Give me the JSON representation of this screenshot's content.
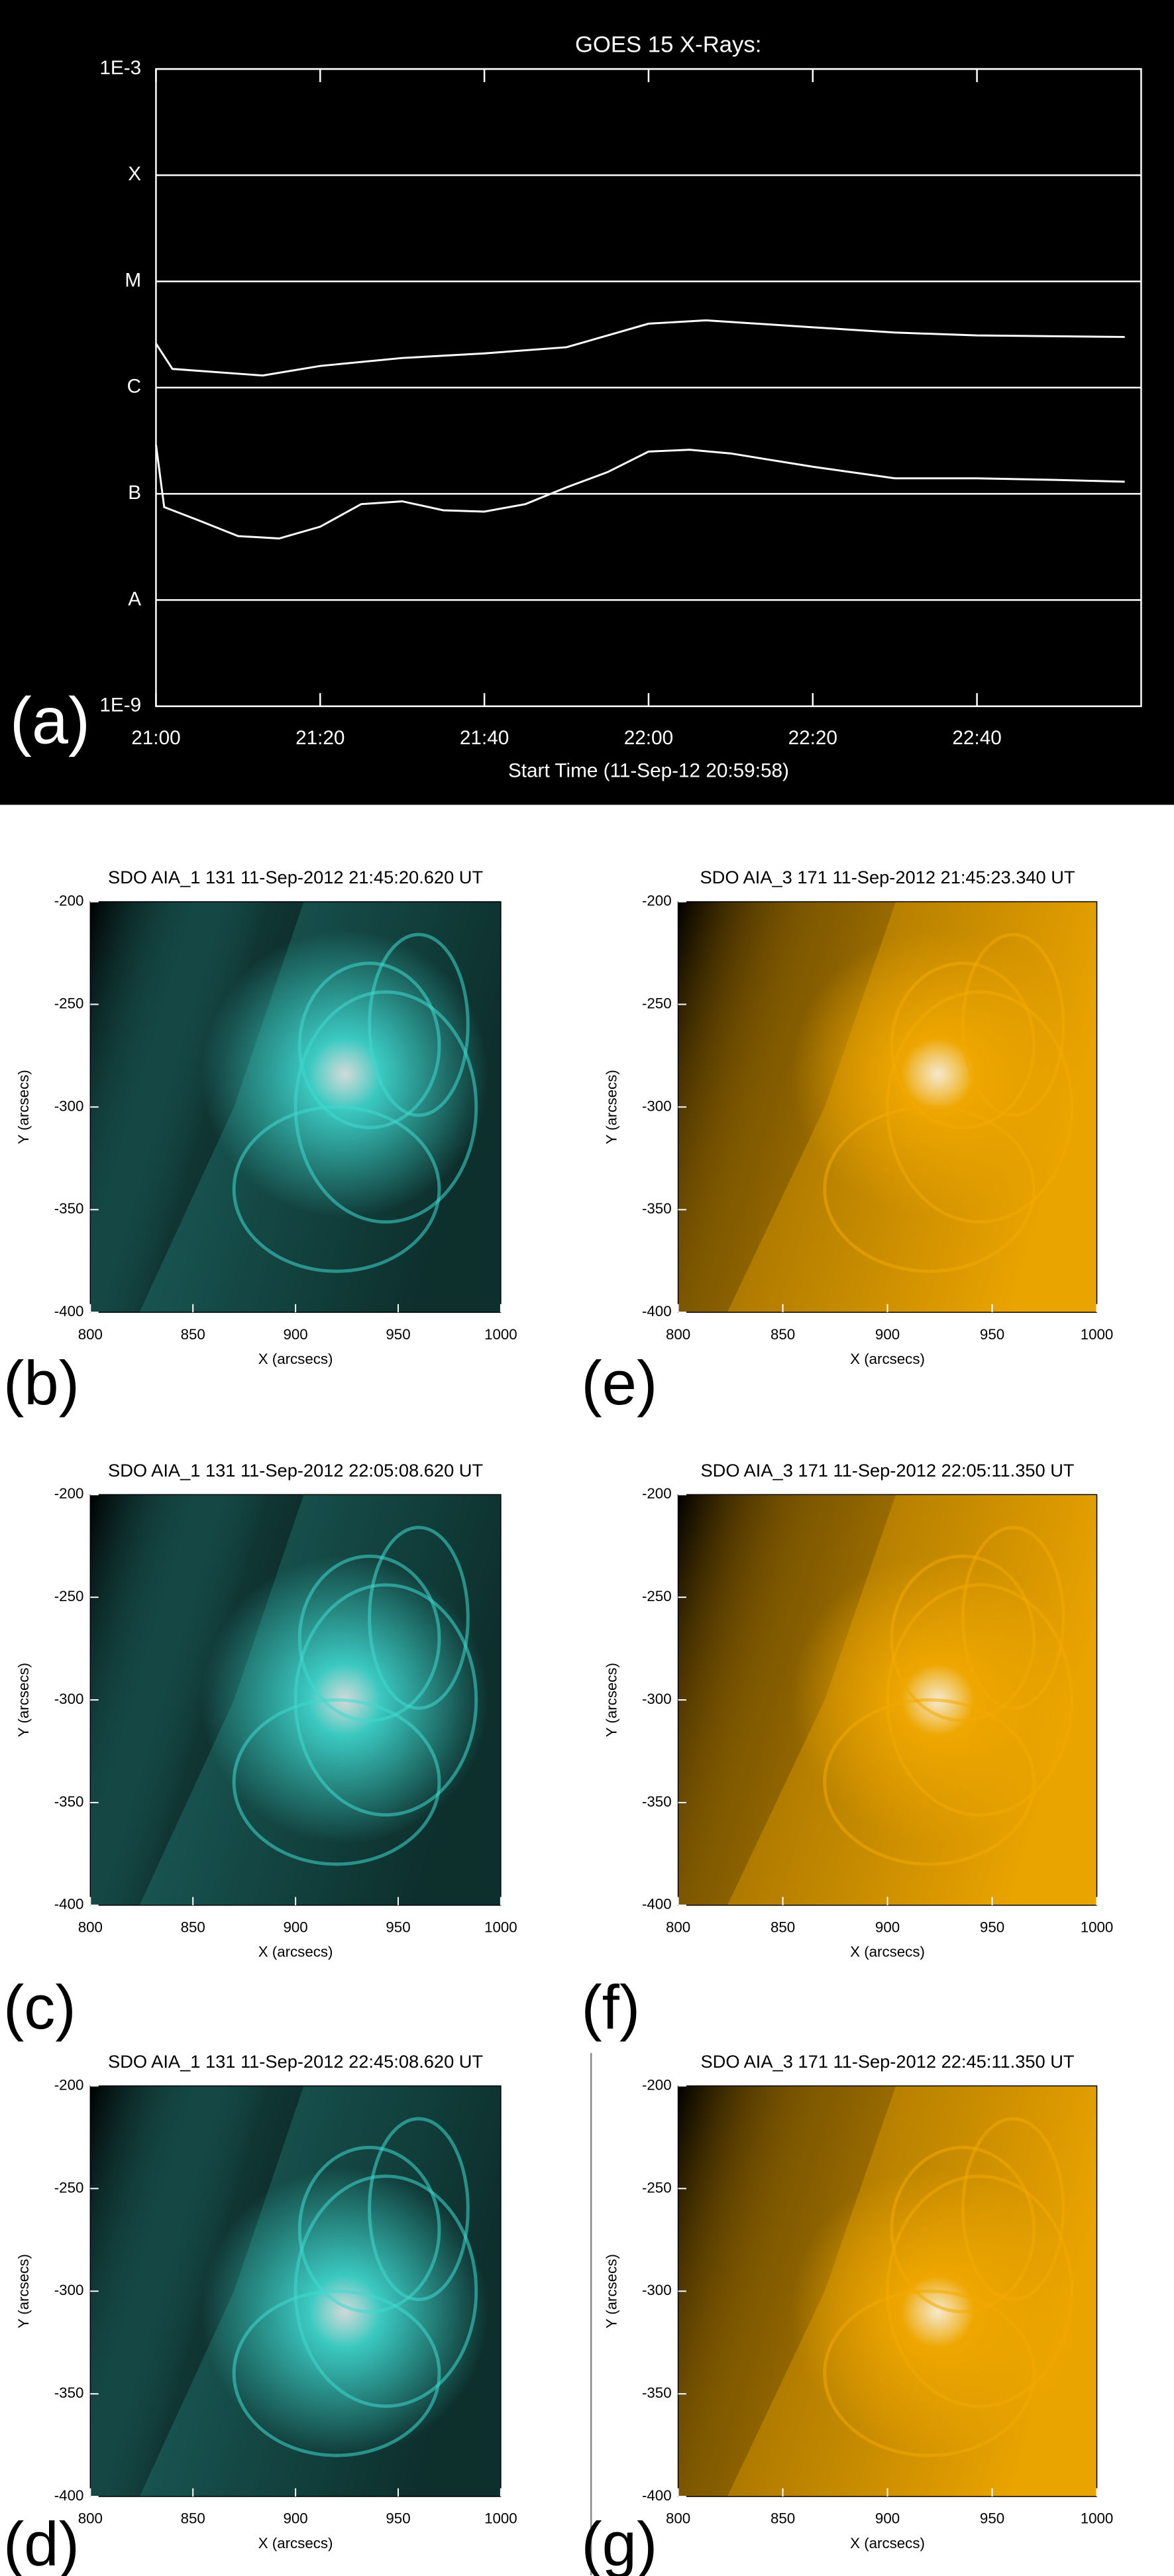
{
  "chart_data": [
    {
      "type": "line",
      "title": "GOES 15 X-Rays:",
      "label": "(a)",
      "xlabel": "Start Time (11-Sep-12 20:59:58)",
      "log_y": true,
      "grid": true,
      "color": "#ffffff",
      "xlim": [
        "21:00",
        "23:00"
      ],
      "xticks": [
        "21:00",
        "21:20",
        "21:40",
        "22:00",
        "22:20",
        "22:40"
      ],
      "ylim": [
        1e-09,
        0.001
      ],
      "yticks": [
        {
          "value": 1e-09,
          "label": "1E-9"
        },
        {
          "value": 1e-08,
          "label": "A"
        },
        {
          "value": 1e-07,
          "label": "B"
        },
        {
          "value": 1e-06,
          "label": "C"
        },
        {
          "value": 1e-05,
          "label": "M"
        },
        {
          "value": 0.0001,
          "label": "X"
        },
        {
          "value": 0.001,
          "label": "1E-3"
        }
      ],
      "series": [
        {
          "color": "#ffffff",
          "x": [
            "21:00",
            "21:02",
            "21:13",
            "21:20",
            "21:30",
            "21:40",
            "21:50",
            "21:55",
            "22:00",
            "22:07",
            "22:20",
            "22:30",
            "22:40",
            "22:58"
          ],
          "values": [
            2.6e-06,
            1.5e-06,
            1.3e-06,
            1.6e-06,
            1.9e-06,
            2.1e-06,
            2.4e-06,
            3.1e-06,
            4e-06,
            4.3e-06,
            3.7e-06,
            3.3e-06,
            3.1e-06,
            3e-06
          ]
        },
        {
          "color": "#ffffff",
          "x": [
            "21:00",
            "21:01",
            "21:05",
            "21:10",
            "21:15",
            "21:20",
            "21:25",
            "21:30",
            "21:35",
            "21:40",
            "21:45",
            "21:50",
            "21:55",
            "22:00",
            "22:05",
            "22:10",
            "22:20",
            "22:30",
            "22:40",
            "22:50",
            "22:58"
          ],
          "values": [
            2.9e-07,
            7.5e-08,
            5.7e-08,
            4e-08,
            3.8e-08,
            4.9e-08,
            8e-08,
            8.5e-08,
            7e-08,
            6.8e-08,
            8e-08,
            1.15e-07,
            1.6e-07,
            2.5e-07,
            2.6e-07,
            2.4e-07,
            1.8e-07,
            1.4e-07,
            1.4e-07,
            1.35e-07,
            1.3e-07
          ]
        }
      ]
    },
    {
      "type": "image",
      "title": "SDO AIA_1 131 11-Sep-2012 21:45:20.620 UT",
      "label": "(b)",
      "xlabel": "X (arcsecs)",
      "ylabel": "Y (arcsecs)",
      "color": "#3fd8cf",
      "xlim": [
        800,
        1000
      ],
      "xticks": [
        800,
        850,
        900,
        950,
        1000
      ],
      "ylim": [
        -400,
        -200
      ],
      "yticks": [
        -200,
        -250,
        -300,
        -350,
        -400
      ]
    },
    {
      "type": "image",
      "title": "SDO AIA_1 131 11-Sep-2012 22:05:08.620 UT",
      "label": "(c)",
      "xlabel": "X (arcsecs)",
      "ylabel": "Y (arcsecs)",
      "color": "#3fd8cf",
      "xlim": [
        800,
        1000
      ],
      "xticks": [
        800,
        850,
        900,
        950,
        1000
      ],
      "ylim": [
        -400,
        -200
      ],
      "yticks": [
        -200,
        -250,
        -300,
        -350,
        -400
      ]
    },
    {
      "type": "image",
      "title": "SDO AIA_1 131 11-Sep-2012 22:45:08.620 UT",
      "label": "(d)",
      "xlabel": "X (arcsecs)",
      "ylabel": "Y (arcsecs)",
      "color": "#3fd8cf",
      "xlim": [
        800,
        1000
      ],
      "xticks": [
        800,
        850,
        900,
        950,
        1000
      ],
      "ylim": [
        -400,
        -200
      ],
      "yticks": [
        -200,
        -250,
        -300,
        -350,
        -400
      ]
    },
    {
      "type": "image",
      "title": "SDO AIA_3 171 11-Sep-2012 21:45:23.340 UT",
      "label": "(e)",
      "xlabel": "X (arcsecs)",
      "ylabel": "Y (arcsecs)",
      "color": "#f2a900",
      "xlim": [
        800,
        1000
      ],
      "xticks": [
        800,
        850,
        900,
        950,
        1000
      ],
      "ylim": [
        -400,
        -200
      ],
      "yticks": [
        -200,
        -250,
        -300,
        -350,
        -400
      ]
    },
    {
      "type": "image",
      "title": "SDO AIA_3 171 11-Sep-2012 22:05:11.350 UT",
      "label": "(f)",
      "xlabel": "X (arcsecs)",
      "ylabel": "Y (arcsecs)",
      "color": "#f2a900",
      "xlim": [
        800,
        1000
      ],
      "xticks": [
        800,
        850,
        900,
        950,
        1000
      ],
      "ylim": [
        -400,
        -200
      ],
      "yticks": [
        -200,
        -250,
        -300,
        -350,
        -400
      ]
    },
    {
      "type": "image",
      "title": "SDO AIA_3 171 11-Sep-2012 22:45:11.350 UT",
      "label": "(g)",
      "xlabel": "X (arcsecs)",
      "ylabel": "Y (arcsecs)",
      "color": "#f2a900",
      "xlim": [
        800,
        1000
      ],
      "xticks": [
        800,
        850,
        900,
        950,
        1000
      ],
      "ylim": [
        -400,
        -200
      ],
      "yticks": [
        -200,
        -250,
        -300,
        -350,
        -400
      ]
    }
  ]
}
